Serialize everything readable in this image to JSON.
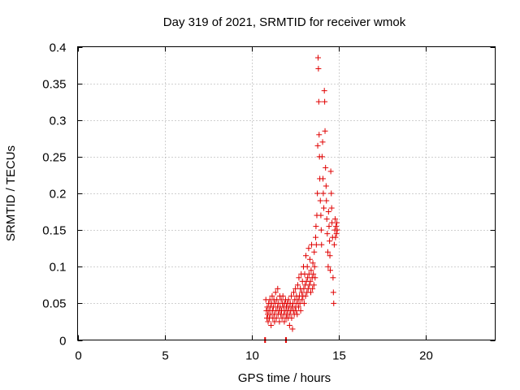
{
  "chart_data": {
    "type": "scatter",
    "title": "Day 319 of 2021, SRMTID for receiver wmok",
    "xlabel": "GPS time / hours",
    "ylabel": "SRMTID / TECUs",
    "xlim": [
      0,
      24
    ],
    "ylim": [
      0,
      0.4
    ],
    "xticks": [
      0,
      5,
      10,
      15,
      20
    ],
    "yticks": [
      0,
      0.05,
      0.1,
      0.15,
      0.2,
      0.25,
      0.3,
      0.35,
      0.4
    ],
    "xtick_labels": [
      "0",
      "5",
      "10",
      "15",
      "20"
    ],
    "ytick_labels": [
      "0",
      "0.05",
      "0.1",
      "0.15",
      "0.2",
      "0.25",
      "0.3",
      "0.35",
      "0.4"
    ],
    "grid": true,
    "marker": "+",
    "color": "#e00000",
    "series": [
      {
        "name": "SRMTID",
        "points": [
          [
            10.75,
            0.0
          ],
          [
            10.78,
            0.0
          ],
          [
            10.8,
            0.0
          ],
          [
            11.95,
            0.0
          ],
          [
            11.98,
            0.0
          ],
          [
            12.0,
            0.0
          ],
          [
            10.82,
            0.055
          ],
          [
            10.85,
            0.04
          ],
          [
            10.88,
            0.03
          ],
          [
            10.9,
            0.045
          ],
          [
            10.93,
            0.035
          ],
          [
            10.95,
            0.025
          ],
          [
            10.98,
            0.05
          ],
          [
            11.0,
            0.04
          ],
          [
            11.02,
            0.03
          ],
          [
            11.05,
            0.055
          ],
          [
            11.08,
            0.045
          ],
          [
            11.1,
            0.035
          ],
          [
            11.12,
            0.02
          ],
          [
            11.15,
            0.05
          ],
          [
            11.18,
            0.06
          ],
          [
            11.2,
            0.04
          ],
          [
            11.22,
            0.03
          ],
          [
            11.25,
            0.045
          ],
          [
            11.28,
            0.055
          ],
          [
            11.3,
            0.035
          ],
          [
            11.32,
            0.025
          ],
          [
            11.35,
            0.05
          ],
          [
            11.38,
            0.065
          ],
          [
            11.4,
            0.04
          ],
          [
            11.42,
            0.03
          ],
          [
            11.45,
            0.055
          ],
          [
            11.48,
            0.045
          ],
          [
            11.5,
            0.07
          ],
          [
            11.52,
            0.035
          ],
          [
            11.55,
            0.05
          ],
          [
            11.58,
            0.04
          ],
          [
            11.6,
            0.025
          ],
          [
            11.62,
            0.06
          ],
          [
            11.65,
            0.045
          ],
          [
            11.68,
            0.035
          ],
          [
            11.7,
            0.055
          ],
          [
            11.72,
            0.04
          ],
          [
            11.75,
            0.03
          ],
          [
            11.78,
            0.05
          ],
          [
            11.8,
            0.06
          ],
          [
            11.82,
            0.045
          ],
          [
            11.85,
            0.035
          ],
          [
            11.88,
            0.025
          ],
          [
            11.9,
            0.05
          ],
          [
            11.92,
            0.04
          ],
          [
            11.95,
            0.055
          ],
          [
            11.98,
            0.03
          ],
          [
            12.0,
            0.045
          ],
          [
            12.02,
            0.035
          ],
          [
            12.05,
            0.05
          ],
          [
            12.08,
            0.04
          ],
          [
            12.1,
            0.03
          ],
          [
            12.12,
            0.055
          ],
          [
            12.15,
            0.045
          ],
          [
            12.18,
            0.02
          ],
          [
            12.2,
            0.035
          ],
          [
            12.22,
            0.05
          ],
          [
            12.25,
            0.04
          ],
          [
            12.28,
            0.06
          ],
          [
            12.3,
            0.03
          ],
          [
            12.32,
            0.045
          ],
          [
            12.35,
            0.015
          ],
          [
            12.38,
            0.05
          ],
          [
            12.4,
            0.04
          ],
          [
            12.42,
            0.065
          ],
          [
            12.45,
            0.035
          ],
          [
            12.48,
            0.055
          ],
          [
            12.5,
            0.045
          ],
          [
            12.52,
            0.07
          ],
          [
            12.55,
            0.04
          ],
          [
            12.58,
            0.06
          ],
          [
            12.6,
            0.05
          ],
          [
            12.62,
            0.035
          ],
          [
            12.65,
            0.075
          ],
          [
            12.68,
            0.055
          ],
          [
            12.7,
            0.045
          ],
          [
            12.72,
            0.085
          ],
          [
            12.75,
            0.06
          ],
          [
            12.78,
            0.05
          ],
          [
            12.8,
            0.07
          ],
          [
            12.82,
            0.04
          ],
          [
            12.85,
            0.09
          ],
          [
            12.88,
            0.065
          ],
          [
            12.9,
            0.055
          ],
          [
            12.92,
            0.08
          ],
          [
            12.95,
            0.06
          ],
          [
            12.98,
            0.1
          ],
          [
            13.0,
            0.07
          ],
          [
            13.02,
            0.05
          ],
          [
            13.05,
            0.09
          ],
          [
            13.08,
            0.075
          ],
          [
            13.1,
            0.06
          ],
          [
            13.12,
            0.115
          ],
          [
            13.15,
            0.08
          ],
          [
            13.18,
            0.065
          ],
          [
            13.2,
            0.1
          ],
          [
            13.22,
            0.085
          ],
          [
            13.25,
            0.07
          ],
          [
            13.28,
            0.125
          ],
          [
            13.3,
            0.09
          ],
          [
            13.32,
            0.075
          ],
          [
            13.35,
            0.11
          ],
          [
            13.38,
            0.08
          ],
          [
            13.4,
            0.065
          ],
          [
            13.42,
            0.095
          ],
          [
            13.45,
            0.13
          ],
          [
            13.48,
            0.085
          ],
          [
            13.5,
            0.07
          ],
          [
            13.52,
            0.105
          ],
          [
            13.55,
            0.09
          ],
          [
            13.58,
            0.075
          ],
          [
            13.6,
            0.12
          ],
          [
            13.62,
            0.1
          ],
          [
            13.65,
            0.085
          ],
          [
            13.68,
            0.14
          ],
          [
            13.7,
            0.155
          ],
          [
            13.72,
            0.13
          ],
          [
            13.75,
            0.17
          ],
          [
            13.78,
            0.2
          ],
          [
            13.8,
            0.265
          ],
          [
            13.82,
            0.385
          ],
          [
            13.84,
            0.37
          ],
          [
            13.86,
            0.325
          ],
          [
            13.88,
            0.28
          ],
          [
            13.9,
            0.25
          ],
          [
            13.92,
            0.22
          ],
          [
            13.95,
            0.19
          ],
          [
            13.98,
            0.17
          ],
          [
            14.0,
            0.15
          ],
          [
            14.02,
            0.13
          ],
          [
            14.05,
            0.25
          ],
          [
            14.08,
            0.27
          ],
          [
            14.1,
            0.22
          ],
          [
            14.12,
            0.2
          ],
          [
            14.15,
            0.18
          ],
          [
            14.18,
            0.34
          ],
          [
            14.2,
            0.325
          ],
          [
            14.22,
            0.285
          ],
          [
            14.25,
            0.235
          ],
          [
            14.28,
            0.21
          ],
          [
            14.3,
            0.19
          ],
          [
            14.32,
            0.165
          ],
          [
            14.35,
            0.145
          ],
          [
            14.38,
            0.12
          ],
          [
            14.4,
            0.1
          ],
          [
            14.42,
            0.175
          ],
          [
            14.45,
            0.155
          ],
          [
            14.48,
            0.135
          ],
          [
            14.5,
            0.115
          ],
          [
            14.52,
            0.095
          ],
          [
            14.55,
            0.23
          ],
          [
            14.58,
            0.2
          ],
          [
            14.6,
            0.18
          ],
          [
            14.62,
            0.16
          ],
          [
            14.65,
            0.14
          ],
          [
            14.68,
            0.085
          ],
          [
            14.7,
            0.065
          ],
          [
            14.72,
            0.05
          ],
          [
            14.75,
            0.13
          ],
          [
            14.78,
            0.15
          ],
          [
            14.8,
            0.165
          ],
          [
            14.82,
            0.14
          ],
          [
            14.85,
            0.155
          ],
          [
            14.88,
            0.145
          ],
          [
            14.9,
            0.16
          ],
          [
            14.92,
            0.15
          ]
        ]
      }
    ]
  }
}
